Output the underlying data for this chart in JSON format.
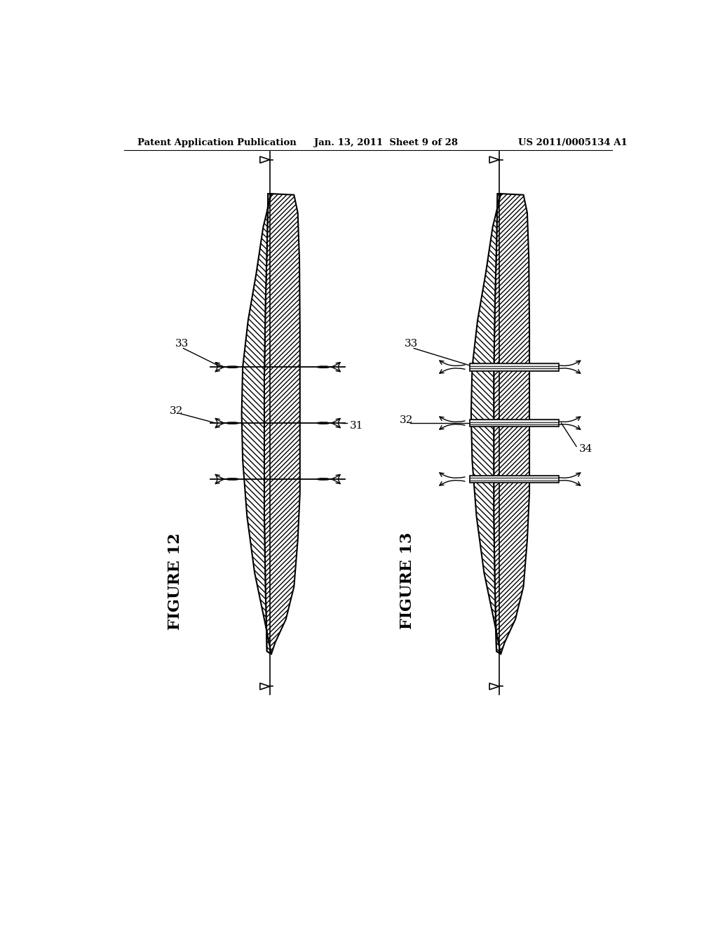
{
  "header_left": "Patent Application Publication",
  "header_center": "Jan. 13, 2011  Sheet 9 of 28",
  "header_right": "US 2011/0005134 A1",
  "fig12_label": "FIGURE 12",
  "fig13_label": "FIGURE 13",
  "bg_color": "#ffffff"
}
